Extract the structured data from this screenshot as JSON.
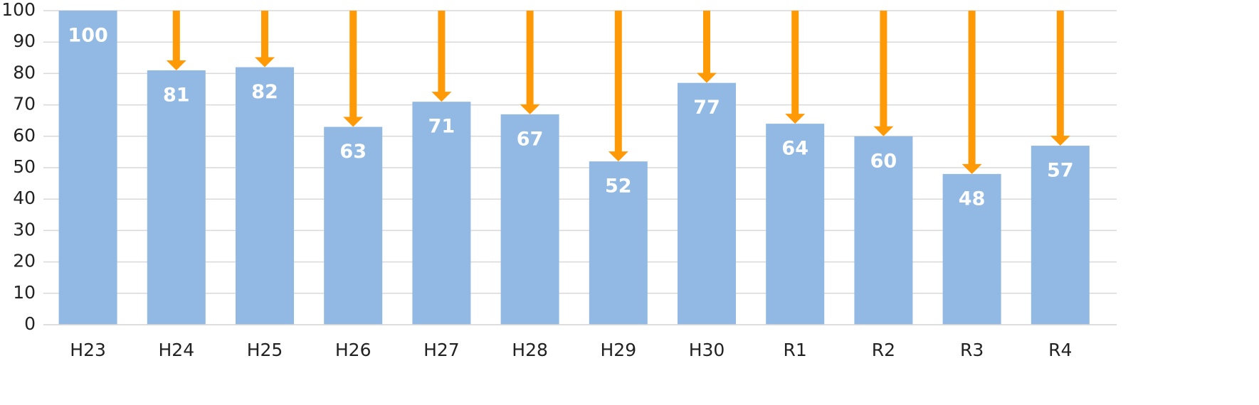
{
  "chart_data": {
    "type": "bar",
    "categories": [
      "H23",
      "H24",
      "H25",
      "H26",
      "H27",
      "H28",
      "H29",
      "H30",
      "R1",
      "R2",
      "R3",
      "R4"
    ],
    "values": [
      100,
      81,
      82,
      63,
      71,
      67,
      52,
      77,
      64,
      60,
      48,
      57
    ],
    "color": "#92b9e3",
    "arrow_color": "#ff9a06",
    "ylim": [
      0,
      100
    ],
    "yticks": [
      0,
      10,
      20,
      30,
      40,
      50,
      60,
      70,
      80,
      90,
      100
    ],
    "grid": true
  }
}
